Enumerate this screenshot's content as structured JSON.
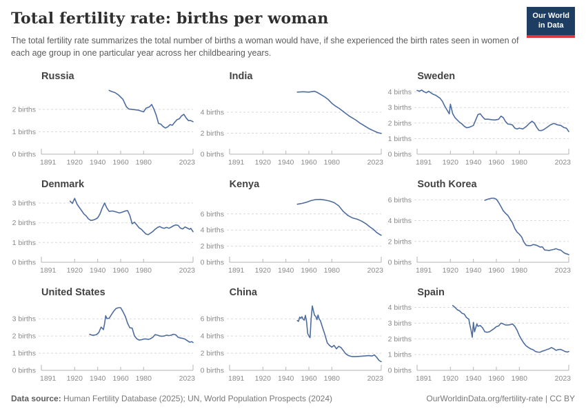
{
  "header": {
    "title": "Total fertility rate: births per woman",
    "subtitle": "The total fertility rate summarizes the total number of births a woman would have, if she experienced the birth rates seen in women of each age group in one particular year across her childbearing years.",
    "logo_line1": "Our World",
    "logo_line2": "in Data"
  },
  "footer": {
    "source_label": "Data source:",
    "source_text": " Human Fertility Database (2025); UN, World Population Prospects (2024)",
    "link_text": "OurWorldinData.org/fertility-rate | CC BY"
  },
  "style": {
    "line_color": "#4c6b9e",
    "grid_color": "#d8d8d8",
    "axis_color": "#b3b3b3",
    "tick_label_color": "#8a8a8a",
    "navy": "#1d3d63",
    "red": "#d93b3b"
  },
  "chart_data": [
    {
      "type": "line",
      "title": "Russia",
      "y_unit": "births",
      "x_range": [
        1891,
        2023
      ],
      "x_ticks": [
        1891,
        1920,
        1940,
        1960,
        1980,
        2023
      ],
      "y_ticks": [
        0,
        1,
        2
      ],
      "y_max": 2.95,
      "series": [
        {
          "name": "Russia",
          "x": [
            1950,
            1952,
            1955,
            1958,
            1960,
            1962,
            1965,
            1967,
            1970,
            1973,
            1975,
            1978,
            1980,
            1982,
            1985,
            1987,
            1989,
            1991,
            1993,
            1995,
            1997,
            1999,
            2001,
            2003,
            2005,
            2007,
            2009,
            2011,
            2013,
            2015,
            2017,
            2019,
            2021,
            2023
          ],
          "y": [
            2.85,
            2.8,
            2.75,
            2.65,
            2.55,
            2.45,
            2.12,
            2.02,
            2.0,
            1.98,
            1.97,
            1.92,
            1.89,
            2.05,
            2.11,
            2.22,
            2.01,
            1.73,
            1.37,
            1.34,
            1.23,
            1.17,
            1.22,
            1.32,
            1.29,
            1.42,
            1.54,
            1.58,
            1.71,
            1.78,
            1.62,
            1.5,
            1.5,
            1.45
          ]
        }
      ]
    },
    {
      "type": "line",
      "title": "India",
      "y_unit": "births",
      "x_range": [
        1891,
        2023
      ],
      "x_ticks": [
        1891,
        1920,
        1940,
        1960,
        1980,
        2023
      ],
      "y_ticks": [
        0,
        2,
        4
      ],
      "y_max": 6.3,
      "series": [
        {
          "name": "India",
          "x": [
            1950,
            1955,
            1960,
            1965,
            1968,
            1971,
            1974,
            1977,
            1980,
            1983,
            1986,
            1989,
            1992,
            1995,
            1998,
            2001,
            2004,
            2007,
            2010,
            2013,
            2016,
            2019,
            2021,
            2023
          ],
          "y": [
            5.92,
            5.95,
            5.92,
            6.0,
            5.85,
            5.65,
            5.45,
            5.2,
            4.85,
            4.6,
            4.4,
            4.15,
            3.9,
            3.65,
            3.45,
            3.25,
            3.0,
            2.8,
            2.6,
            2.4,
            2.25,
            2.1,
            2.03,
            1.98
          ]
        }
      ]
    },
    {
      "type": "line",
      "title": "Sweden",
      "y_unit": "births",
      "x_range": [
        1891,
        2023
      ],
      "x_ticks": [
        1891,
        1920,
        1940,
        1960,
        1980,
        2023
      ],
      "y_ticks": [
        0,
        1,
        2,
        3,
        4
      ],
      "y_max": 4.25,
      "series": [
        {
          "name": "Sweden",
          "x": [
            1891,
            1893,
            1895,
            1897,
            1899,
            1901,
            1903,
            1905,
            1907,
            1909,
            1911,
            1913,
            1915,
            1917,
            1919,
            1920,
            1922,
            1924,
            1926,
            1928,
            1930,
            1932,
            1934,
            1936,
            1938,
            1940,
            1942,
            1944,
            1946,
            1948,
            1950,
            1953,
            1956,
            1959,
            1962,
            1964,
            1966,
            1968,
            1970,
            1972,
            1974,
            1976,
            1978,
            1980,
            1983,
            1986,
            1989,
            1991,
            1993,
            1995,
            1997,
            1999,
            2001,
            2004,
            2007,
            2010,
            2013,
            2016,
            2019,
            2021,
            2023
          ],
          "y": [
            4.1,
            4.05,
            4.12,
            4.02,
            3.95,
            4.05,
            3.95,
            3.85,
            3.8,
            3.7,
            3.6,
            3.4,
            3.1,
            2.85,
            2.6,
            3.22,
            2.6,
            2.35,
            2.2,
            2.05,
            1.95,
            1.8,
            1.7,
            1.72,
            1.78,
            1.85,
            2.2,
            2.55,
            2.6,
            2.4,
            2.25,
            2.25,
            2.22,
            2.2,
            2.25,
            2.45,
            2.35,
            2.1,
            1.94,
            1.92,
            1.88,
            1.68,
            1.62,
            1.68,
            1.62,
            1.78,
            2.0,
            2.12,
            2.0,
            1.74,
            1.53,
            1.52,
            1.57,
            1.72,
            1.88,
            1.98,
            1.89,
            1.85,
            1.71,
            1.67,
            1.45
          ]
        }
      ]
    },
    {
      "type": "line",
      "title": "Denmark",
      "y_unit": "births",
      "x_range": [
        1891,
        2023
      ],
      "x_ticks": [
        1891,
        1920,
        1940,
        1960,
        1980,
        2023
      ],
      "y_ticks": [
        0,
        1,
        2,
        3
      ],
      "y_max": 3.35,
      "series": [
        {
          "name": "Denmark",
          "x": [
            1916,
            1918,
            1920,
            1922,
            1924,
            1926,
            1928,
            1930,
            1932,
            1934,
            1936,
            1938,
            1940,
            1942,
            1944,
            1946,
            1948,
            1950,
            1953,
            1956,
            1959,
            1962,
            1964,
            1966,
            1968,
            1970,
            1972,
            1974,
            1976,
            1978,
            1980,
            1982,
            1984,
            1986,
            1988,
            1990,
            1992,
            1994,
            1996,
            1998,
            2000,
            2002,
            2004,
            2006,
            2008,
            2010,
            2012,
            2014,
            2016,
            2018,
            2020,
            2021,
            2023
          ],
          "y": [
            3.1,
            2.98,
            3.24,
            2.95,
            2.78,
            2.62,
            2.45,
            2.35,
            2.2,
            2.12,
            2.14,
            2.18,
            2.25,
            2.45,
            2.75,
            3.0,
            2.75,
            2.58,
            2.6,
            2.55,
            2.5,
            2.55,
            2.6,
            2.62,
            2.38,
            1.95,
            2.03,
            1.9,
            1.75,
            1.67,
            1.55,
            1.43,
            1.4,
            1.48,
            1.56,
            1.67,
            1.76,
            1.81,
            1.75,
            1.72,
            1.77,
            1.72,
            1.78,
            1.85,
            1.89,
            1.87,
            1.73,
            1.69,
            1.79,
            1.73,
            1.67,
            1.72,
            1.55
          ]
        }
      ]
    },
    {
      "type": "line",
      "title": "Kenya",
      "y_unit": "births",
      "x_range": [
        1891,
        2023
      ],
      "x_ticks": [
        1891,
        1920,
        1940,
        1960,
        1980,
        2023
      ],
      "y_ticks": [
        0,
        2,
        4,
        6
      ],
      "y_max": 8.2,
      "series": [
        {
          "name": "Kenya",
          "x": [
            1950,
            1954,
            1958,
            1962,
            1966,
            1970,
            1974,
            1978,
            1982,
            1986,
            1990,
            1994,
            1998,
            2002,
            2006,
            2010,
            2013,
            2016,
            2019,
            2021,
            2023
          ],
          "y": [
            7.2,
            7.3,
            7.45,
            7.65,
            7.78,
            7.8,
            7.72,
            7.6,
            7.4,
            7.0,
            6.3,
            5.8,
            5.5,
            5.35,
            5.1,
            4.75,
            4.4,
            4.1,
            3.7,
            3.5,
            3.35
          ]
        }
      ]
    },
    {
      "type": "line",
      "title": "South Korea",
      "y_unit": "births",
      "x_range": [
        1891,
        2023
      ],
      "x_ticks": [
        1891,
        1920,
        1940,
        1960,
        1980,
        2023
      ],
      "y_ticks": [
        0,
        2,
        4,
        6
      ],
      "y_max": 6.35,
      "series": [
        {
          "name": "South Korea",
          "x": [
            1950,
            1953,
            1956,
            1958,
            1960,
            1962,
            1964,
            1966,
            1968,
            1970,
            1972,
            1974,
            1976,
            1978,
            1980,
            1982,
            1984,
            1986,
            1988,
            1990,
            1992,
            1994,
            1996,
            1998,
            2000,
            2002,
            2004,
            2006,
            2008,
            2010,
            2012,
            2014,
            2016,
            2018,
            2020,
            2022,
            2023
          ],
          "y": [
            5.95,
            6.08,
            6.15,
            6.15,
            6.05,
            5.75,
            5.35,
            4.95,
            4.7,
            4.5,
            4.14,
            3.8,
            3.25,
            2.9,
            2.7,
            2.42,
            1.93,
            1.63,
            1.6,
            1.6,
            1.7,
            1.67,
            1.58,
            1.46,
            1.48,
            1.18,
            1.16,
            1.13,
            1.19,
            1.23,
            1.3,
            1.21,
            1.17,
            0.98,
            0.84,
            0.78,
            0.72
          ]
        }
      ]
    },
    {
      "type": "line",
      "title": "United States",
      "y_unit": "births",
      "x_range": [
        1891,
        2023
      ],
      "x_ticks": [
        1891,
        1920,
        1940,
        1960,
        1980,
        2023
      ],
      "y_ticks": [
        0,
        1,
        2,
        3
      ],
      "y_max": 3.85,
      "series": [
        {
          "name": "United States",
          "x": [
            1933,
            1935,
            1937,
            1939,
            1941,
            1943,
            1945,
            1946,
            1947,
            1948,
            1950,
            1952,
            1954,
            1956,
            1958,
            1960,
            1962,
            1964,
            1966,
            1968,
            1970,
            1972,
            1974,
            1976,
            1978,
            1980,
            1982,
            1984,
            1986,
            1988,
            1990,
            1992,
            1994,
            1996,
            1998,
            2000,
            2002,
            2004,
            2006,
            2008,
            2010,
            2012,
            2014,
            2016,
            2018,
            2020,
            2022,
            2023
          ],
          "y": [
            2.1,
            2.05,
            2.05,
            2.08,
            2.2,
            2.52,
            2.37,
            2.72,
            3.18,
            3.02,
            3.03,
            3.25,
            3.45,
            3.6,
            3.65,
            3.65,
            3.42,
            3.15,
            2.75,
            2.48,
            2.46,
            2.01,
            1.84,
            1.76,
            1.78,
            1.82,
            1.83,
            1.8,
            1.84,
            1.93,
            2.08,
            2.05,
            2.0,
            1.98,
            2.0,
            2.05,
            2.02,
            2.05,
            2.1,
            2.07,
            1.93,
            1.88,
            1.86,
            1.82,
            1.73,
            1.64,
            1.67,
            1.62
          ]
        }
      ]
    },
    {
      "type": "line",
      "title": "China",
      "y_unit": "births",
      "x_range": [
        1891,
        2023
      ],
      "x_ticks": [
        1891,
        1920,
        1940,
        1960,
        1980,
        2023
      ],
      "y_ticks": [
        0,
        2,
        4,
        6
      ],
      "y_max": 7.7,
      "series": [
        {
          "name": "China",
          "x": [
            1950,
            1951,
            1952,
            1953,
            1954,
            1955,
            1956,
            1957,
            1958,
            1959,
            1960,
            1961,
            1962,
            1963,
            1964,
            1965,
            1966,
            1967,
            1968,
            1969,
            1970,
            1972,
            1974,
            1976,
            1978,
            1980,
            1982,
            1984,
            1986,
            1988,
            1990,
            1992,
            1994,
            1996,
            1998,
            2000,
            2003,
            2006,
            2009,
            2012,
            2015,
            2017,
            2019,
            2021,
            2023
          ],
          "y": [
            5.8,
            5.7,
            6.2,
            6.05,
            6.25,
            5.95,
            5.85,
            6.4,
            5.65,
            4.3,
            4.0,
            3.8,
            6.0,
            7.5,
            6.9,
            6.4,
            6.3,
            5.9,
            6.45,
            5.95,
            5.8,
            4.95,
            4.15,
            3.2,
            2.9,
            2.7,
            2.9,
            2.5,
            2.8,
            2.65,
            2.3,
            1.95,
            1.75,
            1.65,
            1.6,
            1.6,
            1.62,
            1.65,
            1.68,
            1.72,
            1.67,
            1.8,
            1.52,
            1.16,
            1.0
          ]
        }
      ]
    },
    {
      "type": "line",
      "title": "Spain",
      "y_unit": "births",
      "x_range": [
        1891,
        2023
      ],
      "x_ticks": [
        1891,
        1920,
        1940,
        1960,
        1980,
        2023
      ],
      "y_ticks": [
        0,
        1,
        2,
        3,
        4
      ],
      "y_max": 4.2,
      "series": [
        {
          "name": "Spain",
          "x": [
            1922,
            1924,
            1926,
            1928,
            1930,
            1932,
            1934,
            1936,
            1937,
            1938,
            1939,
            1940,
            1941,
            1942,
            1943,
            1944,
            1946,
            1948,
            1950,
            1952,
            1954,
            1956,
            1958,
            1960,
            1962,
            1964,
            1966,
            1968,
            1970,
            1972,
            1974,
            1976,
            1978,
            1980,
            1982,
            1984,
            1986,
            1988,
            1990,
            1992,
            1994,
            1996,
            1998,
            2000,
            2002,
            2004,
            2006,
            2008,
            2010,
            2012,
            2014,
            2016,
            2018,
            2020,
            2022,
            2023
          ],
          "y": [
            4.12,
            4.0,
            3.85,
            3.78,
            3.63,
            3.58,
            3.35,
            3.25,
            2.85,
            2.55,
            2.1,
            3.05,
            2.45,
            2.7,
            2.95,
            2.8,
            2.85,
            2.7,
            2.45,
            2.42,
            2.45,
            2.55,
            2.65,
            2.78,
            2.82,
            3.0,
            2.95,
            2.88,
            2.88,
            2.9,
            2.95,
            2.8,
            2.55,
            2.21,
            1.94,
            1.72,
            1.55,
            1.45,
            1.36,
            1.31,
            1.2,
            1.16,
            1.15,
            1.22,
            1.26,
            1.32,
            1.37,
            1.45,
            1.37,
            1.27,
            1.32,
            1.33,
            1.26,
            1.19,
            1.16,
            1.2
          ]
        }
      ]
    }
  ]
}
